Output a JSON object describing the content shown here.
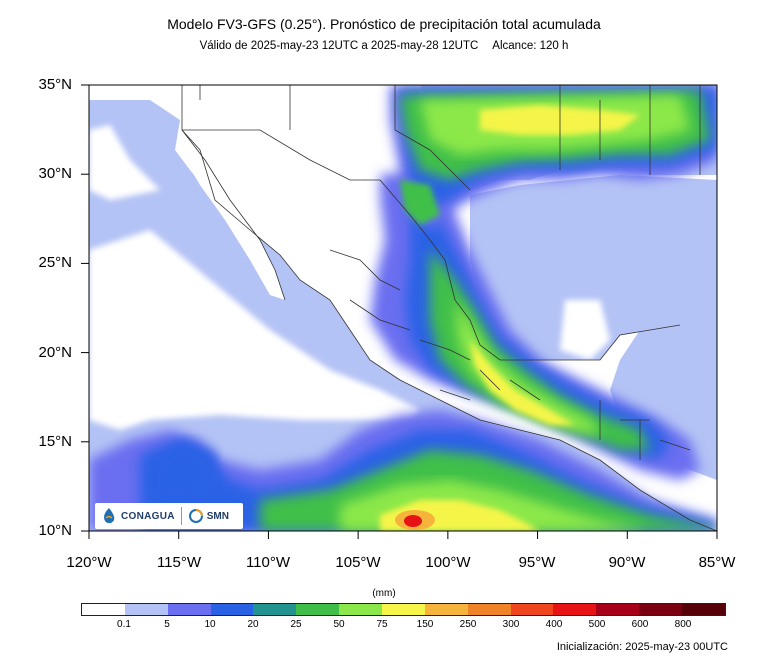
{
  "title": "Modelo FV3-GFS (0.25°). Pronóstico de precipitación total acumulada",
  "subtitle": {
    "valid": "Válido de 2025-may-23 12UTC a 2025-may-28 12UTC",
    "range": "Alcance: 120 h"
  },
  "lat_labels": [
    "35°N",
    "30°N",
    "25°N",
    "20°N",
    "15°N",
    "10°N"
  ],
  "lon_labels": [
    "120°W",
    "115°W",
    "110°W",
    "105°W",
    "100°W",
    "95°W",
    "90°W",
    "85°W"
  ],
  "legend": {
    "units": "(mm)",
    "ticks": [
      "0.1",
      "5",
      "10",
      "20",
      "25",
      "50",
      "75",
      "150",
      "250",
      "300",
      "400",
      "500",
      "600",
      "800"
    ],
    "colors": [
      "#ffffff",
      "#b4c3f5",
      "#6a6ef0",
      "#2a62e6",
      "#23938f",
      "#3fbf4a",
      "#8ce84a",
      "#f5f54a",
      "#f5b43c",
      "#f08228",
      "#f0461e",
      "#e61414",
      "#a8001a",
      "#7a0010",
      "#560008"
    ]
  },
  "initialization": "Inicialización: 2025-may-23 00UTC",
  "logos": {
    "conagua": "CONAGUA",
    "smn": "SMN"
  },
  "map_colors": {
    "land": "#ffffff",
    "light": "#b4c3f5",
    "blue": "#6a6ef0",
    "dark_blue": "#2a62e6",
    "teal": "#23938f",
    "green": "#3fbf4a",
    "light_green": "#8ce84a",
    "yellow": "#f5f54a",
    "orange": "#f5b43c",
    "red": "#e61414",
    "border": "#333333"
  }
}
